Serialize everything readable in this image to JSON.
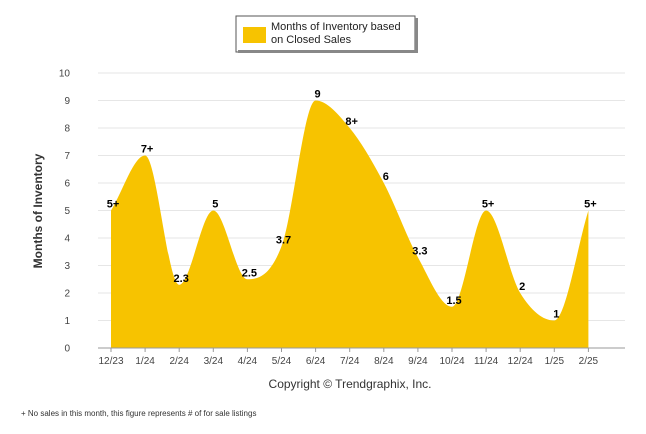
{
  "chart_data": {
    "type": "area",
    "title": "",
    "xlabel": "",
    "ylabel": "Months of Inventory",
    "ylim": [
      0,
      10
    ],
    "yticks": [
      "0",
      "1",
      "2",
      "3",
      "4",
      "5",
      "6",
      "7",
      "8",
      "9",
      "10"
    ],
    "grid": true,
    "legend_position": "top-center",
    "categories": [
      "12/23",
      "1/24",
      "2/24",
      "3/24",
      "4/24",
      "5/24",
      "6/24",
      "7/24",
      "8/24",
      "9/24",
      "10/24",
      "11/24",
      "12/24",
      "1/25",
      "2/25"
    ],
    "series": [
      {
        "name": "Months of Inventory based on Closed Sales",
        "color": "#f7c300",
        "values": [
          5,
          7,
          2.3,
          5,
          2.5,
          3.7,
          9,
          8,
          6,
          3.3,
          1.5,
          5,
          2,
          1,
          5
        ],
        "labels": [
          "5+",
          "7+",
          "2.3",
          "5",
          "2.5",
          "3.7",
          "9",
          "8+",
          "6",
          "3.3",
          "1.5",
          "5+",
          "2",
          "1",
          "5+"
        ]
      }
    ]
  },
  "legend": {
    "line1": "Months of Inventory based",
    "line2": "on Closed Sales"
  },
  "credit": "Copyright © Trendgraphix, Inc.",
  "footnote": "+ No sales in this month, this figure represents # of for sale listings"
}
